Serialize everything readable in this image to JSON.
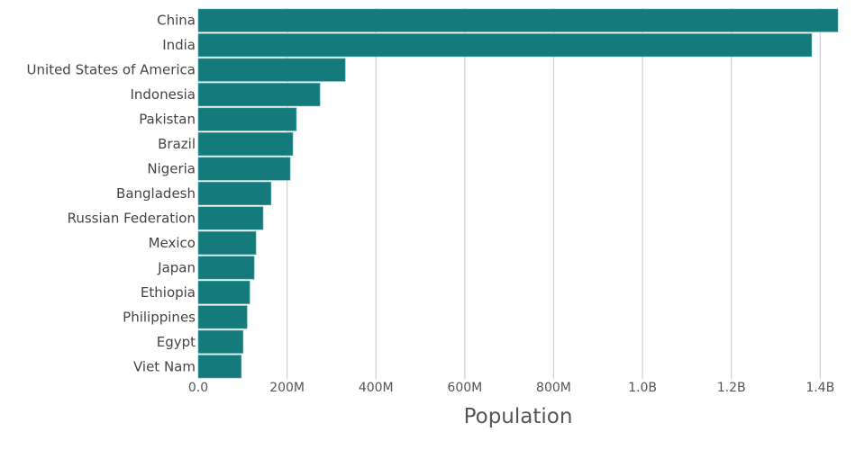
{
  "chart_data": {
    "type": "bar",
    "orientation": "horizontal",
    "title": "",
    "xlabel": "Population",
    "ylabel": "",
    "categories": [
      "China",
      "India",
      "United States of America",
      "Indonesia",
      "Pakistan",
      "Brazil",
      "Nigeria",
      "Bangladesh",
      "Russian Federation",
      "Mexico",
      "Japan",
      "Ethiopia",
      "Philippines",
      "Egypt",
      "Viet Nam"
    ],
    "values": [
      1440000000,
      1381000000,
      331000000,
      274000000,
      221000000,
      213000000,
      207000000,
      164000000,
      146000000,
      130000000,
      126000000,
      116000000,
      110000000,
      101000000,
      97000000
    ],
    "xlim": [
      0,
      1440000000
    ],
    "xticks": [
      0,
      200000000,
      400000000,
      600000000,
      800000000,
      1000000000,
      1200000000,
      1400000000
    ],
    "xtick_labels": [
      "0.0",
      "200M",
      "400M",
      "600M",
      "800M",
      "1.0B",
      "1.2B",
      "1.4B"
    ],
    "grid": true,
    "bar_color": "#147a7c",
    "grid_color": "#d0d0d0"
  }
}
